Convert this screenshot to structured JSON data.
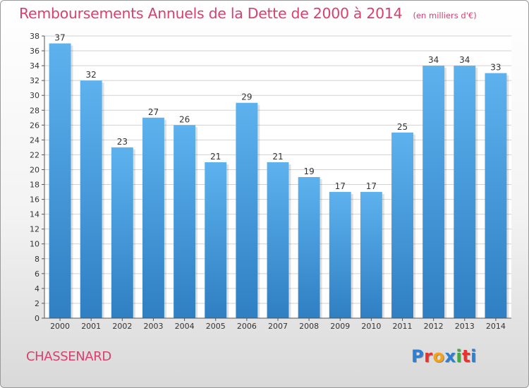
{
  "header": {
    "title": "Remboursements Annuels de la Dette de 2000 à 2014",
    "unit": "(en milliers d'€)"
  },
  "footer": {
    "commune": "CHASSENARD",
    "logo_letters": [
      "P",
      "r",
      "o",
      "x",
      "i",
      "t",
      "i"
    ],
    "logo_colors": [
      "#2b7fd4",
      "#e8322e",
      "#f2a21c",
      "#2b7fd4",
      "#3cae3c",
      "#e8322e",
      "#2b7fd4"
    ]
  },
  "chart_data": {
    "type": "bar",
    "title": "Remboursements Annuels de la Dette de 2000 à 2014",
    "categories": [
      "2000",
      "2001",
      "2002",
      "2003",
      "2004",
      "2005",
      "2006",
      "2007",
      "2008",
      "2009",
      "2010",
      "2011",
      "2012",
      "2013",
      "2014"
    ],
    "values": [
      37,
      32,
      23,
      27,
      26,
      21,
      29,
      21,
      19,
      17,
      17,
      25,
      34,
      34,
      33
    ],
    "ylim": [
      0,
      38
    ],
    "yticks": [
      0,
      2,
      4,
      6,
      8,
      10,
      12,
      14,
      16,
      18,
      20,
      22,
      24,
      26,
      28,
      30,
      32,
      34,
      36,
      38
    ],
    "grid": true,
    "bar_color_top": "#5db2ee",
    "bar_color_bottom": "#2f7fc2",
    "grid_color": "#d2d2d2"
  }
}
